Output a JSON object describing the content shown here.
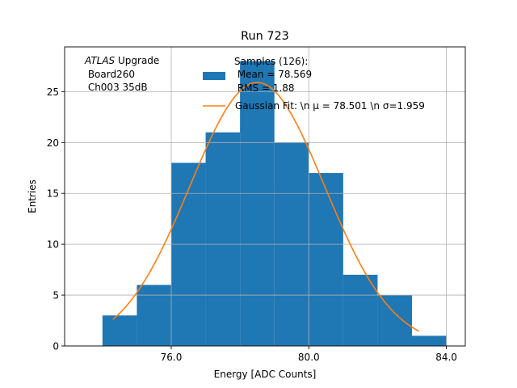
{
  "chart_data": {
    "type": "bar",
    "title": "Run 723",
    "xlabel": "Energy [ADC Counts]",
    "ylabel": "Entries",
    "xlim": [
      72.9,
      84.55
    ],
    "ylim": [
      0,
      29.4
    ],
    "xticks": [
      76.0,
      80.0,
      84.0
    ],
    "xtick_labels": [
      "76.0",
      "80.0",
      "84.0"
    ],
    "yticks": [
      0,
      5,
      10,
      15,
      20,
      25
    ],
    "ytick_labels": [
      "0",
      "5",
      "10",
      "15",
      "20",
      "25"
    ],
    "grid": true,
    "histogram": {
      "name": "Samples (126)",
      "bin_edges": [
        74.0,
        75.0,
        76.0,
        77.0,
        78.0,
        79.0,
        80.0,
        81.0,
        82.0,
        83.0,
        84.0
      ],
      "values": [
        3,
        6,
        18,
        21,
        28,
        20,
        17,
        7,
        5,
        1
      ],
      "color": "#1f77b4"
    },
    "fit": {
      "name": "Gaussian Fit",
      "mu": 78.501,
      "sigma": 1.959,
      "amplitude": 25.9,
      "x_range": [
        74.3,
        83.2
      ],
      "color": "#ff7f0e"
    },
    "annotation": {
      "lines": [
        "ATLAS Upgrade",
        " Board260",
        " Ch003 35dB"
      ],
      "italic_word": "ATLAS",
      "rest_of_first_line": " Upgrade"
    },
    "legend": {
      "position": "top-center",
      "hist_lines": [
        "Samples (126):",
        " Mean = 78.569",
        " RMS = 1.88"
      ],
      "fit_label": "Gaussian Fit: \\n μ = 78.501 \\n σ=1.959"
    }
  }
}
